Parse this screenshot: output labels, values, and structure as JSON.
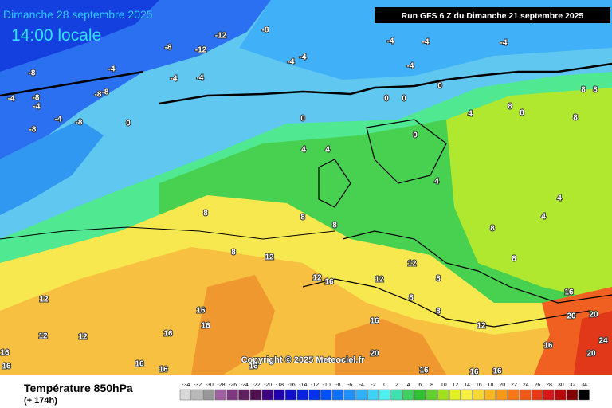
{
  "header": {
    "date": "Dimanche 28 septembre 2025",
    "time": "14:00 locale",
    "run": "Run GFS 6 Z du Dimanche 21 septembre 2025"
  },
  "copyright": "Copyright © 2025 Meteociel.fr",
  "footer": {
    "title": "Température 850hPa",
    "lead": "(+ 174h)"
  },
  "scale": {
    "values": [
      -34,
      -32,
      -30,
      -28,
      -26,
      -24,
      -22,
      -20,
      -18,
      -16,
      -14,
      -12,
      -10,
      -8,
      -6,
      -4,
      -2,
      0,
      2,
      4,
      6,
      8,
      10,
      12,
      14,
      16,
      18,
      20,
      22,
      24,
      26,
      28,
      30,
      32,
      34
    ],
    "colors": [
      "#d8d8d8",
      "#b8b8b8",
      "#989898",
      "#a060a0",
      "#803880",
      "#602060",
      "#501050",
      "#3c0080",
      "#2000a8",
      "#1010c8",
      "#0820e0",
      "#0030f0",
      "#0050f8",
      "#1070f8",
      "#2090f8",
      "#30b0f8",
      "#40d0f8",
      "#50f0f0",
      "#40e0b0",
      "#40d060",
      "#30c030",
      "#60d030",
      "#a0e020",
      "#e0f020",
      "#f8f040",
      "#f8d830",
      "#f8b820",
      "#f89818",
      "#f87818",
      "#f05818",
      "#e83818",
      "#d81818",
      "#b80808",
      "#800000",
      "#000000"
    ]
  },
  "contour_labels": [
    -12,
    -8,
    -8,
    -12,
    -4,
    -4,
    -4,
    -4,
    -4,
    -4,
    -4,
    -8,
    -4,
    -4,
    -8,
    -8,
    -4,
    -8,
    -4,
    -4,
    -8,
    -8,
    0,
    0,
    0,
    0,
    0,
    0,
    8,
    8,
    8,
    8,
    8,
    4,
    4,
    4,
    4,
    4,
    4,
    8,
    8,
    8,
    8,
    12,
    8,
    8,
    12,
    12,
    16,
    12,
    8,
    8,
    8,
    12,
    16,
    16,
    16,
    16,
    12,
    12,
    12,
    16,
    20,
    20,
    20,
    20,
    24,
    16,
    16,
    16,
    16,
    16,
    16,
    16,
    16,
    16
  ]
}
